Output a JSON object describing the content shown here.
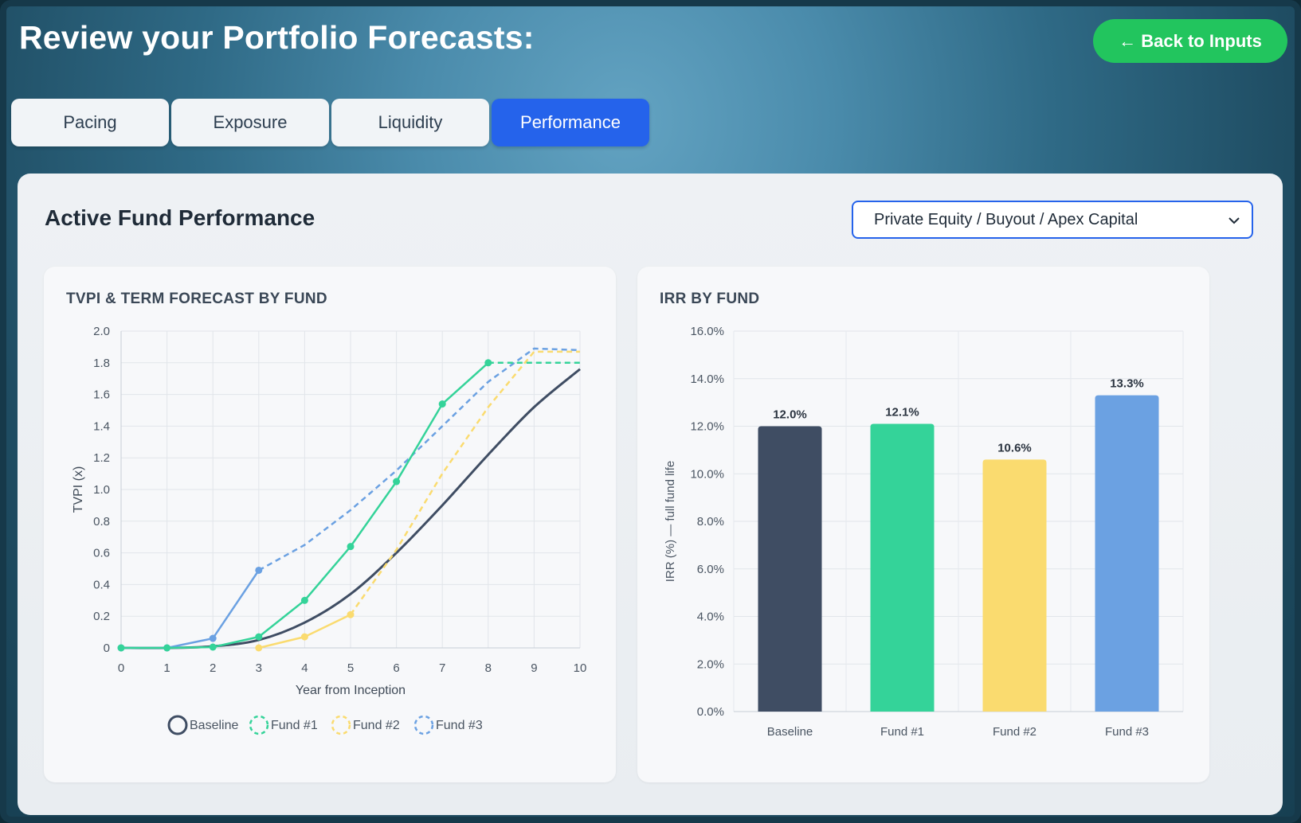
{
  "header": {
    "title": "Review your Portfolio Forecasts:",
    "back_button": "← Back to Inputs"
  },
  "tabs": [
    {
      "label": "Pacing",
      "active": false
    },
    {
      "label": "Exposure",
      "active": false
    },
    {
      "label": "Liquidity",
      "active": false
    },
    {
      "label": "Performance",
      "active": true
    }
  ],
  "panel": {
    "title": "Active Fund Performance",
    "fund_select": "Private Equity / Buyout / Apex Capital"
  },
  "colors": {
    "baseline": "#3f4d63",
    "fund1": "#34d399",
    "fund2": "#fadb6f",
    "fund3": "#6ba1e2",
    "accent": "#2563eb",
    "back_button": "#22c55e"
  },
  "chart_data": [
    {
      "type": "line",
      "title": "TVPI & TERM FORECAST BY FUND",
      "xlabel": "Year from Inception",
      "ylabel": "TVPI (x)",
      "xlim": [
        0,
        10
      ],
      "ylim": [
        0,
        2.0
      ],
      "x_ticks": [
        "0",
        "1",
        "2",
        "3",
        "4",
        "5",
        "6",
        "7",
        "8",
        "9",
        "10"
      ],
      "y_ticks": [
        "0",
        "0.2",
        "0.4",
        "0.6",
        "0.8",
        "1.0",
        "1.2",
        "1.4",
        "1.6",
        "1.8",
        "2.0"
      ],
      "grid": true,
      "legend_position": "bottom",
      "series": [
        {
          "name": "Baseline",
          "style": "solid",
          "x": [
            0,
            1,
            2,
            3,
            4,
            5,
            6,
            7,
            8,
            9,
            10
          ],
          "y": [
            0,
            0,
            0.01,
            0.05,
            0.16,
            0.34,
            0.6,
            0.9,
            1.22,
            1.52,
            1.76
          ]
        },
        {
          "name": "Fund #1",
          "actual_x": [
            0,
            1,
            2,
            3,
            4,
            5,
            6,
            7,
            8
          ],
          "actual_y": [
            0,
            0,
            0.005,
            0.07,
            0.3,
            0.64,
            1.05,
            1.54,
            1.8
          ],
          "forecast_x": [
            8,
            9,
            10
          ],
          "forecast_y": [
            1.8,
            1.8,
            1.8
          ]
        },
        {
          "name": "Fund #2",
          "actual_x": [
            3,
            4,
            5
          ],
          "actual_y": [
            0,
            0.07,
            0.21
          ],
          "forecast_x": [
            5,
            6,
            7,
            8,
            9,
            10
          ],
          "forecast_y": [
            0.21,
            0.62,
            1.1,
            1.52,
            1.87,
            1.87
          ]
        },
        {
          "name": "Fund #3",
          "actual_x": [
            0,
            1,
            2,
            3
          ],
          "actual_y": [
            0,
            0,
            0.06,
            0.49
          ],
          "forecast_x": [
            3,
            4,
            5,
            6,
            7,
            8,
            9,
            10
          ],
          "forecast_y": [
            0.49,
            0.65,
            0.87,
            1.12,
            1.4,
            1.68,
            1.89,
            1.88
          ]
        }
      ]
    },
    {
      "type": "bar",
      "title": "IRR BY FUND",
      "ylabel": "IRR (%) — full fund life",
      "categories": [
        "Baseline",
        "Fund #1",
        "Fund #2",
        "Fund #3"
      ],
      "values": [
        12.0,
        12.1,
        10.6,
        13.3
      ],
      "value_labels": [
        "12.0%",
        "12.1%",
        "10.6%",
        "13.3%"
      ],
      "ylim": [
        0,
        16
      ],
      "y_ticks": [
        "0.0%",
        "2.0%",
        "4.0%",
        "6.0%",
        "8.0%",
        "10.0%",
        "12.0%",
        "14.0%",
        "16.0%"
      ],
      "grid": true
    }
  ]
}
